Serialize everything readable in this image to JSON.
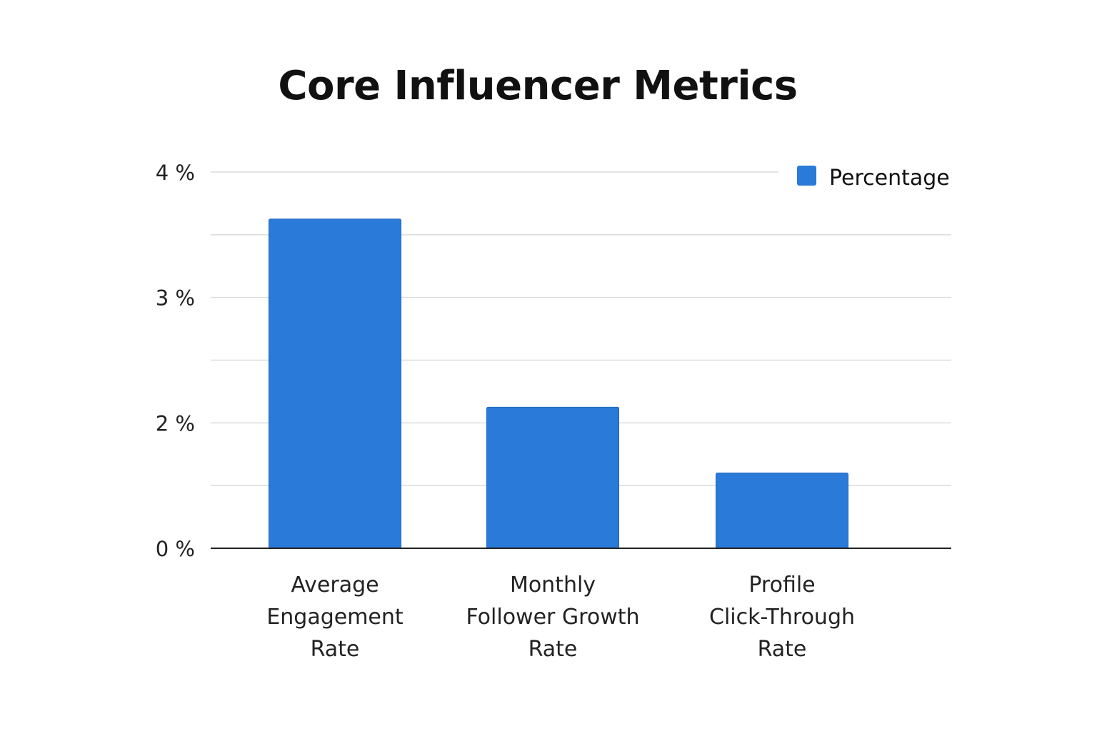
{
  "chart_data": {
    "type": "bar",
    "title": "Core Influencer Metrics",
    "categories": [
      "Average Engagement Rate",
      "Monthly Follower Growth Rate",
      "Profile Click-Through Rate"
    ],
    "category_lines": [
      [
        "Average",
        "Engagement",
        "Rate"
      ],
      [
        "Monthly",
        "Follower Growth",
        "Rate"
      ],
      [
        "Profile",
        "Click-Through",
        "Rate"
      ]
    ],
    "series": [
      {
        "name": "Percentage",
        "values": [
          3.5,
          1.5,
          0.8
        ],
        "color": "#2a7ad9"
      }
    ],
    "ylim": [
      0,
      4
    ],
    "ytick_labels": [
      "0 %",
      "2 %",
      "3 %",
      "4 %"
    ],
    "xlabel": "",
    "ylabel": "",
    "grid": true,
    "legend": "top-right"
  }
}
